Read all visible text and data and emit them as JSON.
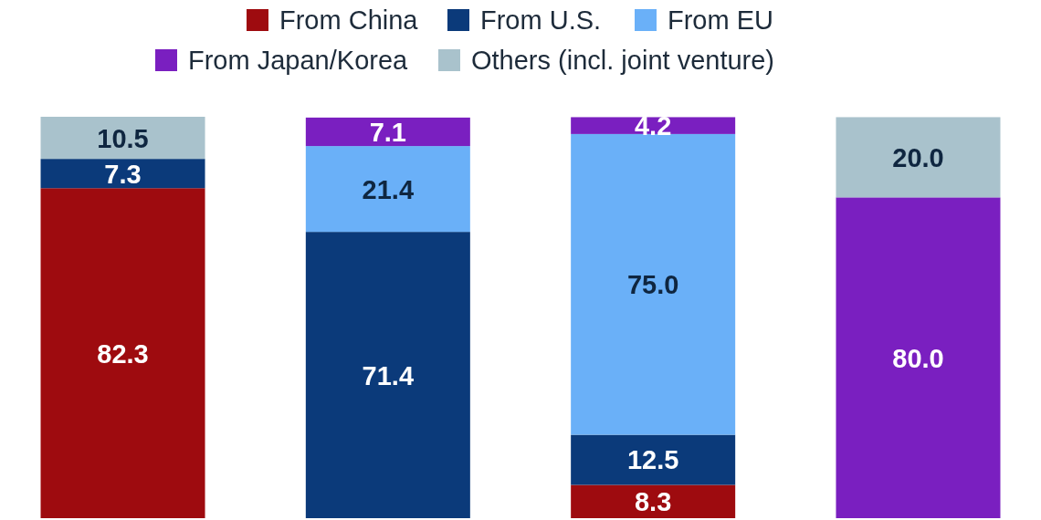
{
  "chart_data": {
    "type": "bar",
    "stacked": true,
    "categories": [
      null,
      null,
      null,
      null
    ],
    "legend": "top",
    "series": [
      {
        "name": "From China",
        "color": "#9e0b0f",
        "values": [
          82.3,
          null,
          8.3,
          null
        ],
        "value_labels": [
          "82.3",
          null,
          "8.3",
          null
        ]
      },
      {
        "name": "From U.S.",
        "color": "#0b3a7a",
        "values": [
          7.3,
          71.4,
          12.5,
          null
        ],
        "value_labels": [
          "7.3",
          "71.4",
          "12.5",
          null
        ]
      },
      {
        "name": "From EU",
        "color": "#6ab0f8",
        "values": [
          null,
          21.4,
          75.0,
          null
        ],
        "value_labels": [
          null,
          "21.4",
          "75.0",
          null
        ]
      },
      {
        "name": "From Japan/Korea",
        "color": "#7a1fc0",
        "values": [
          null,
          7.1,
          4.2,
          80.0
        ],
        "value_labels": [
          null,
          "7.1",
          "4.2",
          "80.0"
        ]
      },
      {
        "name": "Others (incl. joint venture)",
        "color": "#a9c2cc",
        "values": [
          10.5,
          null,
          null,
          20.0
        ],
        "value_labels": [
          "10.5",
          null,
          null,
          "20.0"
        ]
      }
    ]
  }
}
